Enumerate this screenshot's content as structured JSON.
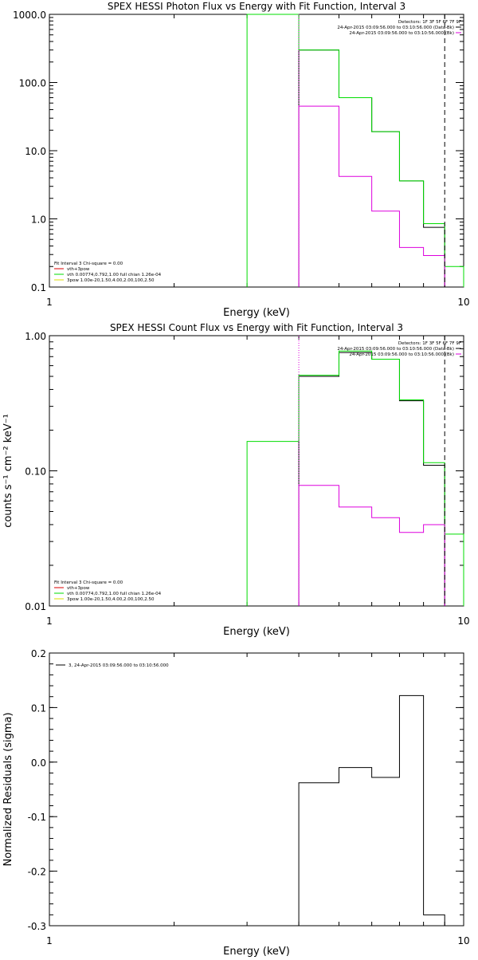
{
  "colors": {
    "total": "#000000",
    "thermal": "#00dd00",
    "power": "#dd00dd",
    "fit": "#dd0000",
    "spec": "#000000",
    "yellow": "#dddd00"
  },
  "chart_data": [
    {
      "type": "line",
      "title": "SPEX HESSI Photon Flux vs Energy with Fit Function, Interval 3",
      "xlabel": "Energy (keV)",
      "ylabel": "",
      "xscale": "log",
      "yscale": "log",
      "xlim": [
        1,
        10
      ],
      "ylim": [
        0.1,
        1000
      ],
      "xticks": [
        {
          "v": 1,
          "t": "1"
        },
        {
          "v": 10,
          "t": "10"
        }
      ],
      "yticks": [
        {
          "v": 0.1,
          "t": "0.1"
        },
        {
          "v": 1,
          "t": "1.0"
        },
        {
          "v": 10,
          "t": "10.0"
        },
        {
          "v": 100,
          "t": "100.0"
        },
        {
          "v": 1000,
          "t": "1000.0"
        }
      ],
      "bin_edges": [
        3,
        4,
        5,
        6,
        7,
        8,
        9,
        10
      ],
      "series": [
        {
          "name": "vth+3pow",
          "color_key": "total",
          "values": [
            null,
            300,
            60,
            19,
            3.6,
            0.75,
            null
          ]
        },
        {
          "name": "vth 0.00774,0.792,1.00 full chian 1.26e-04",
          "color_key": "thermal",
          "values": [
            1000,
            300,
            60,
            19,
            3.6,
            0.85,
            0.2
          ]
        },
        {
          "name": "3pow 1.00e-20,1.50,4.00,2.00,100,2.50",
          "color_key": "power",
          "values": [
            null,
            45,
            4.2,
            1.3,
            0.38,
            0.29,
            null
          ]
        }
      ],
      "vlines": [
        {
          "x": 4,
          "style": "dotted",
          "color_key": "power"
        },
        {
          "x": 9,
          "style": "dashed",
          "color_key": "total"
        }
      ],
      "legend_tr": [
        "Detectors: 1F 3F 5F 6F 7F 9F",
        "24-Apr-2015 03:09:56.000 to 03:10:56.000 (Data-Bk)",
        "24-Apr-2015 03:09:56.000 to 03:10:56.000 (Bk)"
      ],
      "legend_tr_colors": [
        "",
        "total",
        "power"
      ],
      "legend_bl": [
        "Fit Interval 3   Chi-square = 0.00",
        "vth+3pow",
        "vth 0.00774,0.792,1.00  full chian 1.26e-04",
        "3pow 1.00e-20,1.50,4.00,2.00,100,2.50"
      ],
      "legend_bl_colors": [
        "",
        "fit",
        "thermal",
        "yellow"
      ]
    },
    {
      "type": "line",
      "title": "SPEX HESSI Count Flux vs Energy with Fit Function, Interval 3",
      "xlabel": "Energy (keV)",
      "ylabel": "counts s⁻¹ cm⁻² keV⁻¹",
      "xscale": "log",
      "yscale": "log",
      "xlim": [
        1,
        10
      ],
      "ylim": [
        0.01,
        1
      ],
      "xticks": [
        {
          "v": 1,
          "t": "1"
        },
        {
          "v": 10,
          "t": "10"
        }
      ],
      "yticks": [
        {
          "v": 0.01,
          "t": "0.01"
        },
        {
          "v": 0.1,
          "t": "0.10"
        },
        {
          "v": 1,
          "t": "1.00"
        }
      ],
      "bin_edges": [
        3,
        4,
        5,
        6,
        7,
        8,
        9,
        10
      ],
      "series": [
        {
          "name": "vth+3pow",
          "color_key": "total",
          "values": [
            null,
            0.5,
            0.75,
            0.67,
            0.33,
            0.11,
            null
          ]
        },
        {
          "name": "vth 0.00774,0.792,1.00 full chian 1.26e-04",
          "color_key": "thermal",
          "values": [
            0.165,
            0.51,
            0.77,
            0.67,
            0.335,
            0.115,
            0.034
          ]
        },
        {
          "name": "3pow 1.00e-20,1.50,4.00,2.00,100,2.50",
          "color_key": "power",
          "values": [
            null,
            0.078,
            0.054,
            0.045,
            0.035,
            0.04,
            null
          ]
        }
      ],
      "vlines": [
        {
          "x": 4,
          "style": "dotted",
          "color_key": "power"
        },
        {
          "x": 9,
          "style": "dashed",
          "color_key": "total"
        }
      ],
      "legend_tr": [
        "Detectors: 1F 3F 5F 6F 7F 9F",
        "24-Apr-2015 03:09:56.000 to 03:10:56.000 (Data-Bk)",
        "24-Apr-2015 03:09:56.000 to 03:10:56.000 (Bk)"
      ],
      "legend_tr_colors": [
        "",
        "total",
        "power"
      ],
      "legend_bl": [
        "Fit Interval 3   Chi-square = 0.00",
        "vth+3pow",
        "vth 0.00774,0.792,1.00  full chian 1.26e-04",
        "3pow 1.00e-20,1.50,4.00,2.00,100,2.50"
      ],
      "legend_bl_colors": [
        "",
        "fit",
        "thermal",
        "yellow"
      ]
    },
    {
      "type": "line",
      "title": "",
      "xlabel": "Energy (keV)",
      "ylabel": "Normalized Residuals (sigma)",
      "xscale": "log",
      "yscale": "linear",
      "xlim": [
        1,
        10
      ],
      "ylim": [
        -0.3,
        0.2
      ],
      "xticks": [
        {
          "v": 1,
          "t": "1"
        },
        {
          "v": 10,
          "t": "10"
        }
      ],
      "yticks": [
        {
          "v": -0.3,
          "t": "-0.3"
        },
        {
          "v": -0.2,
          "t": "-0.2"
        },
        {
          "v": -0.1,
          "t": "-0.1"
        },
        {
          "v": 0,
          "t": "0.0"
        },
        {
          "v": 0.1,
          "t": "0.1"
        },
        {
          "v": 0.2,
          "t": "0.2"
        }
      ],
      "bin_edges": [
        4,
        5,
        6,
        7,
        8,
        9
      ],
      "series": [
        {
          "name": "3, 24-Apr-2015 03:09:56.000 to 03:10:56.000",
          "color_key": "total",
          "values": [
            -0.038,
            -0.01,
            -0.028,
            0.122,
            -0.28
          ]
        }
      ],
      "vlines": [],
      "legend_tr": [],
      "legend_tr_colors": [],
      "legend_bl": [],
      "legend_bl_colors": [],
      "legend_tl": [
        "3, 24-Apr-2015 03:09:56.000 to 03:10:56.000"
      ]
    }
  ]
}
